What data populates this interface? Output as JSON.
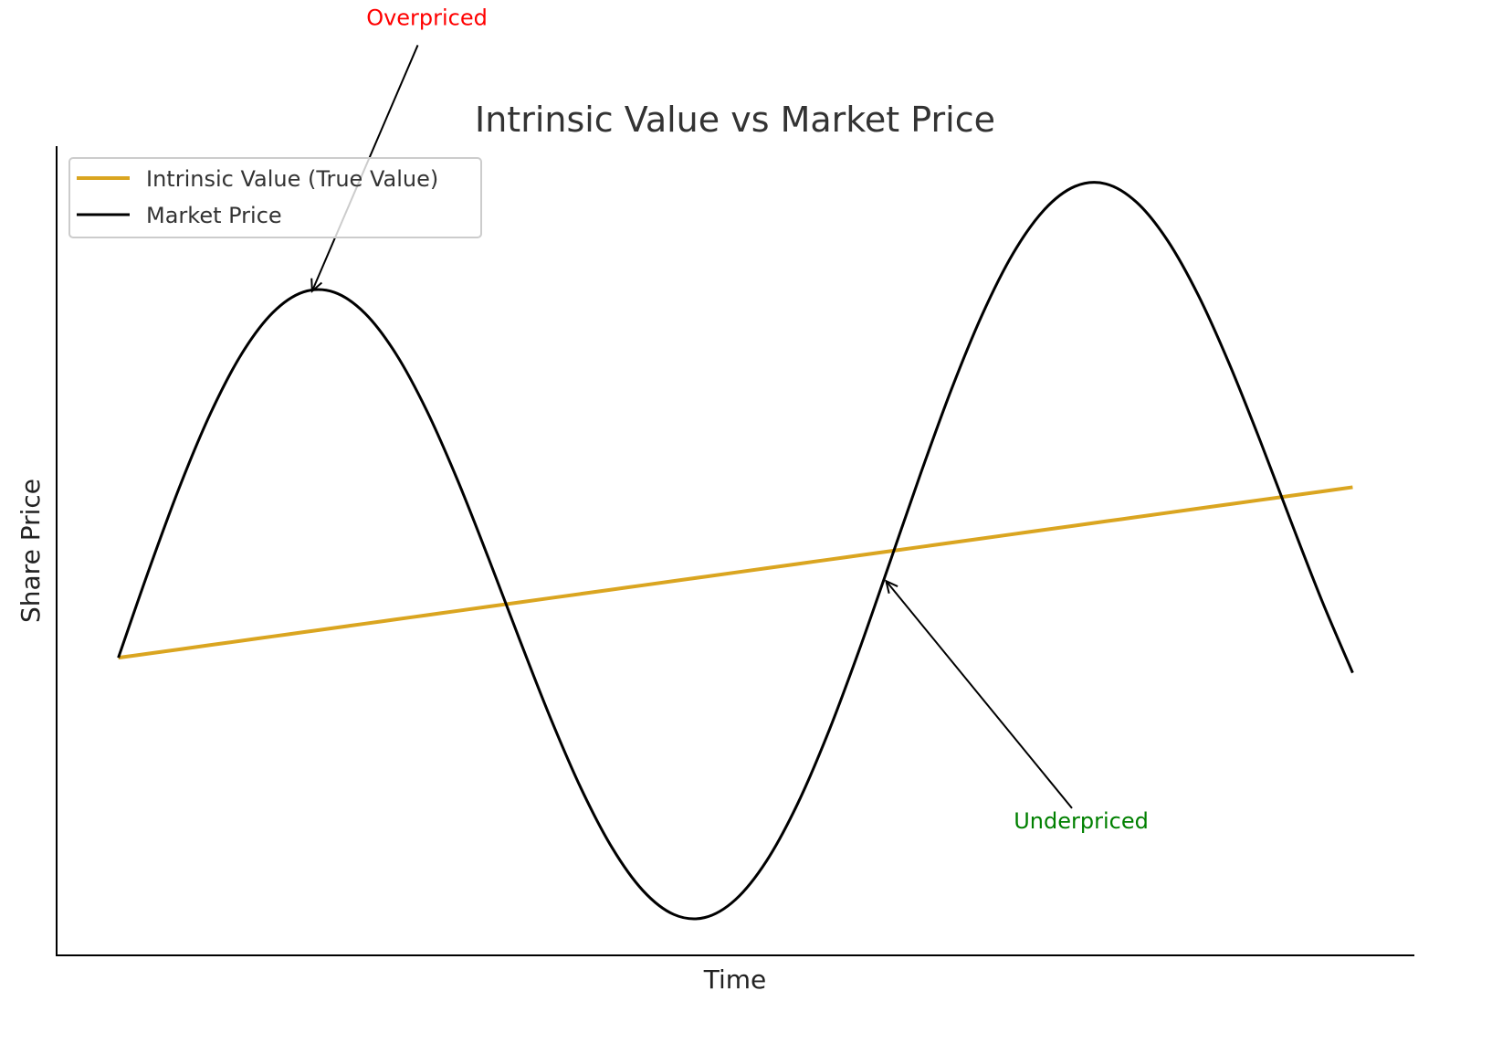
{
  "chart_data": {
    "type": "line",
    "title": "Intrinsic Value vs Market Price",
    "xlabel": "Time",
    "ylabel": "Share Price",
    "xlim": [
      -0.5,
      10.5
    ],
    "ylim": [
      65.1,
      160
    ],
    "grid": false,
    "ticks_shown": false,
    "legend_placement": "upper-left",
    "x": [
      0,
      0.25,
      0.5,
      0.75,
      1,
      1.25,
      1.5,
      1.75,
      2,
      2.25,
      2.5,
      2.75,
      3,
      3.25,
      3.5,
      3.75,
      4,
      4.25,
      4.5,
      4.75,
      5,
      5.25,
      5.5,
      5.75,
      6,
      6.25,
      6.5,
      6.75,
      7,
      7.25,
      7.5,
      7.75,
      8,
      8.25,
      8.5,
      8.75,
      9,
      9.25,
      9.5,
      9.75,
      10
    ],
    "series": [
      {
        "name": "Intrinsic Value (True Value)",
        "color": "#DAA520",
        "values": [
          100,
          100.5,
          101,
          101.5,
          102,
          102.5,
          103,
          103.5,
          104,
          104.5,
          105,
          105.5,
          106,
          106.5,
          107,
          107.5,
          108,
          108.5,
          109,
          109.5,
          110,
          110.5,
          111,
          111.5,
          112,
          112.5,
          113,
          113.5,
          114,
          114.5,
          115,
          115.5,
          116,
          116.5,
          117,
          117.5,
          118,
          118.5,
          119,
          119.5,
          120
        ]
      },
      {
        "name": "Market Price",
        "color": "#000000",
        "values": [
          100,
          110.4,
          120.18,
          128.76,
          135.66,
          140.46,
          142.9,
          142.86,
          140.37,
          135.62,
          128.94,
          120.77,
          111.64,
          102.17,
          92.97,
          84.64,
          77.73,
          72.7,
          69.9,
          69.53,
          71.64,
          76.14,
          82.78,
          91.17,
          100.82,
          111.17,
          121.6,
          131.5,
          140.28,
          147.44,
          152.52,
          155.28,
          155.58,
          153.41,
          148.94,
          142.49,
          134.48,
          125.47,
          115.99,
          106.72,
          98.24
        ]
      }
    ],
    "annotations": [
      {
        "text": "Overpriced",
        "color": "#FF0000",
        "point": [
          1.57,
          143.0
        ],
        "text_pos": [
          2.5,
          174.2
        ]
      },
      {
        "text": "Underpriced",
        "color": "#008000",
        "point": [
          6.22,
          109.0
        ],
        "text_pos": [
          7.8,
          80.0
        ]
      }
    ]
  }
}
